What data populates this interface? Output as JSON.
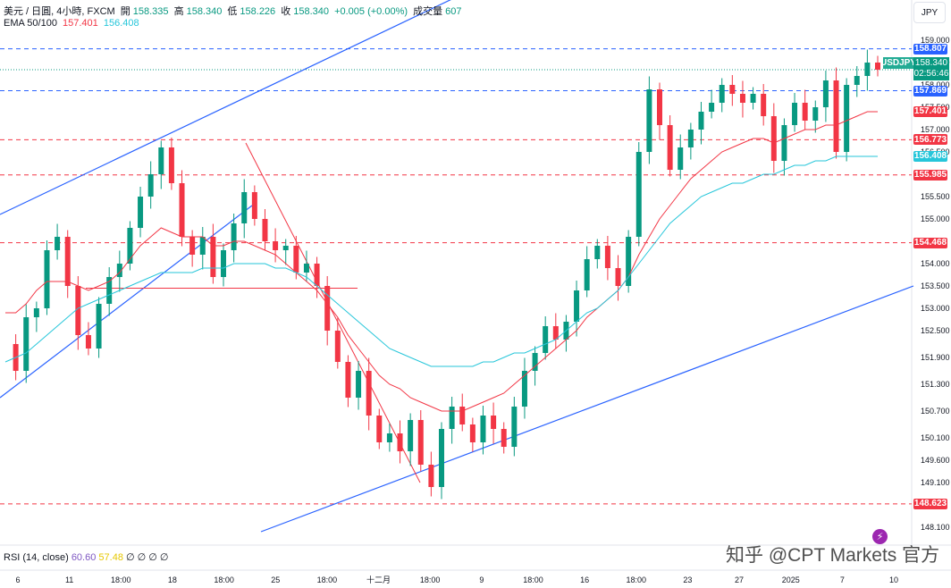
{
  "header": {
    "symbol_line": "美元 / 日圓, 4小時, FXCM",
    "open_label": "開",
    "open": "158.335",
    "high_label": "高",
    "high": "158.340",
    "low_label": "低",
    "low": "158.226",
    "close_label": "收",
    "close": "158.340",
    "change": "+0.005 (+0.00%)",
    "volume_label": "成交量",
    "volume": "607",
    "ema_label": "EMA 50/100",
    "ema50": "157.401",
    "ema100": "156.408"
  },
  "currency": "JPY",
  "symbol_tag": "USDJPY",
  "price_box": {
    "price": "158.340",
    "countdown": "02:56:46"
  },
  "rsi": {
    "label": "RSI (14, close)",
    "v1": "60.60",
    "v2": "57.48",
    "v3": "∅ ∅ ∅ ∅"
  },
  "watermark": "知乎 @CPT Markets 官方",
  "colors": {
    "up": "#089981",
    "down": "#f23645",
    "ema50": "#f23645",
    "ema100": "#26c6da",
    "trend": "#2962ff"
  },
  "chart_data": {
    "type": "candlestick",
    "x_ticks": [
      "6",
      "11",
      "18:00",
      "18",
      "18:00",
      "25",
      "18:00",
      "十二月",
      "18:00",
      "9",
      "18:00",
      "16",
      "18:00",
      "23",
      "27",
      "2025",
      "7",
      "10"
    ],
    "y_ticks": [
      "159.000",
      "158.500",
      "158.000",
      "157.500",
      "157.000",
      "156.500",
      "155.500",
      "155.000",
      "154.000",
      "153.500",
      "153.000",
      "152.500",
      "151.900",
      "151.300",
      "150.700",
      "150.100",
      "149.600",
      "149.100",
      "148.100"
    ],
    "ylim": [
      147.9,
      159.3
    ],
    "levels": [
      {
        "label": "158.807",
        "value": 158.807,
        "color": "#2962ff",
        "style": "dashed"
      },
      {
        "label": "157.869",
        "value": 157.869,
        "color": "#2962ff",
        "style": "dashed"
      },
      {
        "label": "157.401",
        "value": 157.401,
        "color": "#f23645",
        "style": "ema"
      },
      {
        "label": "156.773",
        "value": 156.773,
        "color": "#f23645",
        "style": "dashed"
      },
      {
        "label": "156.408",
        "value": 156.408,
        "color": "#26c6da",
        "style": "ema"
      },
      {
        "label": "155.985",
        "value": 155.985,
        "color": "#f23645",
        "style": "dashed"
      },
      {
        "label": "154.468",
        "value": 154.468,
        "color": "#f23645",
        "style": "dashed"
      },
      {
        "label": "148.623",
        "value": 148.623,
        "color": "#f23645",
        "style": "dashed"
      }
    ],
    "last_price": 158.34,
    "ohlc_path": [
      152.2,
      151.6,
      152.8,
      153.0,
      154.3,
      154.6,
      153.5,
      152.4,
      152.1,
      153.1,
      153.7,
      154.0,
      154.8,
      155.5,
      156.0,
      156.6,
      155.8,
      154.6,
      154.2,
      154.6,
      153.7,
      154.3,
      154.9,
      155.6,
      155.0,
      154.5,
      154.3,
      154.4,
      153.8,
      154.0,
      153.5,
      152.5,
      151.8,
      151.0,
      151.6,
      150.6,
      150.0,
      150.2,
      149.8,
      150.5,
      149.5,
      149.0,
      150.3,
      150.8,
      150.4,
      150.0,
      150.6,
      150.3,
      149.9,
      150.8,
      151.6,
      152.0,
      152.6,
      152.3,
      152.7,
      153.4,
      154.1,
      154.4,
      153.9,
      153.5,
      154.6,
      156.5,
      157.9,
      157.1,
      156.1,
      156.6,
      157.0,
      157.4,
      157.6,
      158.0,
      157.8,
      157.6,
      157.8,
      157.3,
      156.3,
      157.1,
      157.6,
      157.2,
      157.5,
      158.1,
      156.5,
      158.0,
      158.2,
      158.5,
      158.34
    ],
    "ema50": [
      152.9,
      152.9,
      153.1,
      153.4,
      153.6,
      153.6,
      153.6,
      153.5,
      153.4,
      153.5,
      153.6,
      153.8,
      154.1,
      154.4,
      154.6,
      154.8,
      154.7,
      154.6,
      154.6,
      154.6,
      154.4,
      154.4,
      154.5,
      154.5,
      154.4,
      154.3,
      154.2,
      154.0,
      153.8,
      153.6,
      153.4,
      153.1,
      152.8,
      152.4,
      152.1,
      151.8,
      151.5,
      151.3,
      151.2,
      151.0,
      150.9,
      150.8,
      150.7,
      150.7,
      150.7,
      150.8,
      150.9,
      151.0,
      151.1,
      151.3,
      151.5,
      151.7,
      151.9,
      152.1,
      152.3,
      152.5,
      152.8,
      153.0,
      153.2,
      153.4,
      153.7,
      154.2,
      154.6,
      155.0,
      155.3,
      155.6,
      155.9,
      156.1,
      156.3,
      156.5,
      156.6,
      156.7,
      156.8,
      156.8,
      156.7,
      156.8,
      156.9,
      157.0,
      157.0,
      157.1,
      157.1,
      157.2,
      157.3,
      157.4,
      157.4
    ],
    "ema100": [
      151.8,
      151.9,
      152.0,
      152.2,
      152.4,
      152.6,
      152.8,
      153.0,
      153.1,
      153.2,
      153.3,
      153.4,
      153.5,
      153.6,
      153.7,
      153.8,
      153.8,
      153.8,
      153.8,
      153.9,
      153.9,
      153.9,
      154.0,
      154.0,
      154.0,
      154.0,
      153.9,
      153.9,
      153.8,
      153.7,
      153.5,
      153.3,
      153.1,
      152.9,
      152.7,
      152.5,
      152.3,
      152.1,
      152.0,
      151.9,
      151.8,
      151.7,
      151.7,
      151.7,
      151.7,
      151.7,
      151.8,
      151.8,
      151.9,
      152.0,
      152.0,
      152.1,
      152.2,
      152.3,
      152.5,
      152.7,
      152.9,
      153.0,
      153.2,
      153.4,
      153.7,
      154.0,
      154.3,
      154.6,
      154.9,
      155.1,
      155.3,
      155.5,
      155.6,
      155.7,
      155.8,
      155.8,
      155.9,
      156.0,
      156.0,
      156.1,
      156.2,
      156.2,
      156.3,
      156.3,
      156.4,
      156.4,
      156.4,
      156.4,
      156.4
    ]
  }
}
